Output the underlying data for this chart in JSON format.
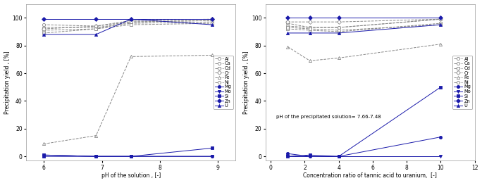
{
  "left": {
    "xlabel": "pH of the solution , [-]",
    "ylabel": "Precipitation yield , [%]",
    "xlim": [
      5.7,
      9.3
    ],
    "ylim": [
      -3,
      110
    ],
    "xticks": [
      6,
      7,
      8,
      9
    ],
    "yticks": [
      0,
      20,
      40,
      60,
      80,
      100
    ],
    "series": {
      "Al": {
        "x": [
          6,
          6.9,
          7.5,
          8.9
        ],
        "y": [
          91,
          92,
          97,
          98
        ],
        "color": "#888888",
        "marker": "o",
        "filled": false,
        "lw": 0.7,
        "ls": "--"
      },
      "Ca": {
        "x": [
          6,
          6.9,
          7.5,
          8.9
        ],
        "y": [
          93,
          93,
          96,
          97
        ],
        "color": "#888888",
        "marker": "o",
        "filled": false,
        "lw": 0.7,
        "ls": "--"
      },
      "Cd": {
        "x": [
          6,
          6.9,
          7.5,
          8.9
        ],
        "y": [
          89,
          92,
          95,
          96
        ],
        "color": "#888888",
        "marker": "s",
        "filled": false,
        "lw": 0.7,
        "ls": "--"
      },
      "Cr": {
        "x": [
          6,
          6.9,
          7.5,
          8.9
        ],
        "y": [
          92,
          94,
          98,
          99
        ],
        "color": "#888888",
        "marker": "D",
        "filled": false,
        "lw": 0.7,
        "ls": "--"
      },
      "Fe": {
        "x": [
          6,
          6.9,
          7.5,
          8.9
        ],
        "y": [
          9,
          15,
          72,
          73
        ],
        "color": "#888888",
        "marker": "^",
        "filled": false,
        "lw": 0.7,
        "ls": "--"
      },
      "Ni": {
        "x": [
          6,
          6.9,
          7.5,
          8.9
        ],
        "y": [
          95,
          94,
          97,
          98
        ],
        "color": "#888888",
        "marker": "o",
        "filled": false,
        "lw": 0.7,
        "ls": "--"
      },
      "Mg": {
        "x": [
          6,
          6.9,
          7.5,
          8.9
        ],
        "y": [
          1,
          0,
          0,
          0
        ],
        "color": "#1a1aaa",
        "marker": "o",
        "filled": true,
        "lw": 0.7,
        "ls": "-"
      },
      "Mo": {
        "x": [
          6,
          6.9,
          7.5,
          8.9
        ],
        "y": [
          1,
          0,
          0,
          0
        ],
        "color": "#1a1aaa",
        "marker": "v",
        "filled": true,
        "lw": 0.7,
        "ls": "-"
      },
      "Si": {
        "x": [
          6,
          6.9,
          7.5,
          8.9
        ],
        "y": [
          0,
          0,
          0,
          6
        ],
        "color": "#1a1aaa",
        "marker": "s",
        "filled": true,
        "lw": 0.7,
        "ls": "-"
      },
      "Zn": {
        "x": [
          6,
          6.9,
          7.5,
          8.9
        ],
        "y": [
          99,
          99,
          99,
          99
        ],
        "color": "#1a1aaa",
        "marker": "D",
        "filled": true,
        "lw": 0.7,
        "ls": "-"
      },
      "U": {
        "x": [
          6,
          6.9,
          7.5,
          8.9
        ],
        "y": [
          88,
          88,
          99,
          95
        ],
        "color": "#1a1aaa",
        "marker": "^",
        "filled": true,
        "lw": 0.7,
        "ls": "-"
      }
    }
  },
  "right": {
    "xlabel": "Concentration ratio of tannic acid to uranium,  [-]",
    "ylabel": "Precipitation yield , [%]",
    "xlim": [
      -0.3,
      12
    ],
    "ylim": [
      -3,
      110
    ],
    "xticks": [
      0,
      2,
      4,
      6,
      8,
      10,
      12
    ],
    "yticks": [
      0,
      20,
      40,
      60,
      80,
      100
    ],
    "annotation": "pH of the precipitated solution= 7.66-7.48",
    "series": {
      "Al": {
        "x": [
          1,
          2.3,
          4,
          10
        ],
        "y": [
          96,
          93,
          93,
          99
        ],
        "color": "#888888",
        "marker": "o",
        "filled": false,
        "lw": 0.7,
        "ls": "--"
      },
      "Ca": {
        "x": [
          1,
          2.3,
          4,
          10
        ],
        "y": [
          94,
          93,
          93,
          99
        ],
        "color": "#888888",
        "marker": "o",
        "filled": false,
        "lw": 0.7,
        "ls": "--"
      },
      "Cd": {
        "x": [
          1,
          2.3,
          4,
          10
        ],
        "y": [
          92,
          91,
          90,
          96
        ],
        "color": "#888888",
        "marker": "s",
        "filled": false,
        "lw": 0.7,
        "ls": "--"
      },
      "Cr": {
        "x": [
          1,
          2.3,
          4,
          10
        ],
        "y": [
          97,
          97,
          97,
          99
        ],
        "color": "#888888",
        "marker": "D",
        "filled": false,
        "lw": 0.7,
        "ls": "--"
      },
      "Fe": {
        "x": [
          1,
          2.3,
          4,
          10
        ],
        "y": [
          79,
          69,
          71,
          81
        ],
        "color": "#888888",
        "marker": "^",
        "filled": false,
        "lw": 0.7,
        "ls": "--"
      },
      "Ni": {
        "x": [
          1,
          2.3,
          4,
          10
        ],
        "y": [
          93,
          92,
          91,
          95
        ],
        "color": "#888888",
        "marker": "o",
        "filled": false,
        "lw": 0.7,
        "ls": "--"
      },
      "Mg": {
        "x": [
          1,
          2.3,
          4,
          10
        ],
        "y": [
          2,
          0,
          0,
          14
        ],
        "color": "#1a1aaa",
        "marker": "o",
        "filled": true,
        "lw": 0.7,
        "ls": "-"
      },
      "Mo": {
        "x": [
          1,
          2.3,
          4,
          10
        ],
        "y": [
          0,
          0,
          0,
          0
        ],
        "color": "#1a1aaa",
        "marker": "v",
        "filled": true,
        "lw": 0.7,
        "ls": "-"
      },
      "Si": {
        "x": [
          1,
          2.3,
          4,
          10
        ],
        "y": [
          0,
          1,
          0,
          50
        ],
        "color": "#1a1aaa",
        "marker": "s",
        "filled": true,
        "lw": 0.7,
        "ls": "-"
      },
      "Zn": {
        "x": [
          1,
          2.3,
          4,
          10
        ],
        "y": [
          100,
          100,
          100,
          100
        ],
        "color": "#1a1aaa",
        "marker": "D",
        "filled": true,
        "lw": 0.7,
        "ls": "-"
      },
      "U": {
        "x": [
          1,
          2.3,
          4,
          10
        ],
        "y": [
          89,
          89,
          89,
          95
        ],
        "color": "#1a1aaa",
        "marker": "^",
        "filled": true,
        "lw": 0.7,
        "ls": "-"
      }
    }
  },
  "legend_order": [
    "Al",
    "Ca",
    "Cd",
    "Cr",
    "Fe",
    "Ni",
    "Mg",
    "Mo",
    "Si",
    "Zn",
    "U"
  ],
  "bg_color": "#ffffff"
}
